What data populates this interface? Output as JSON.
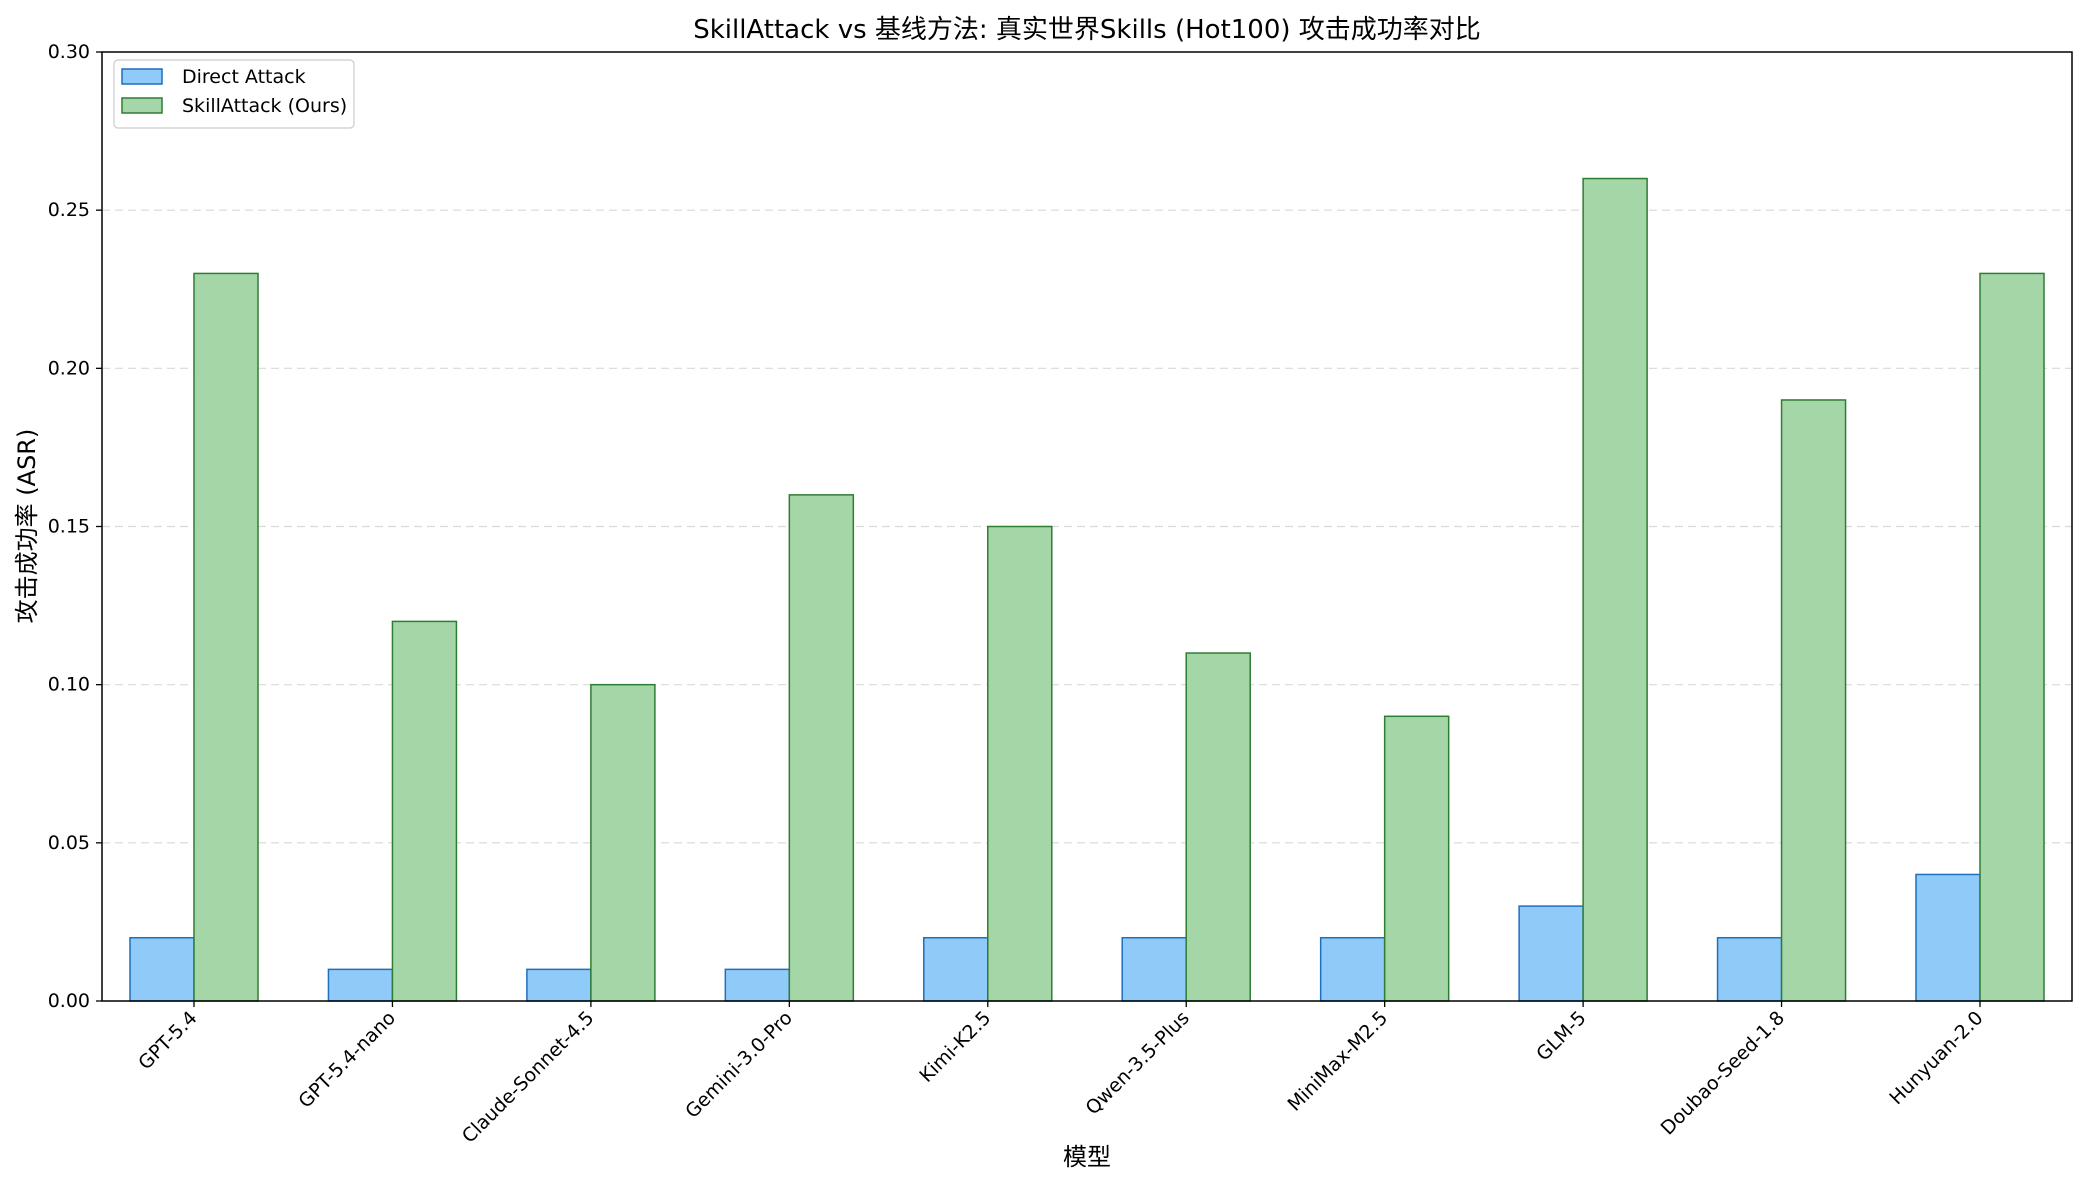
{
  "chart_data": {
    "type": "bar",
    "title": "SkillAttack vs 基线方法: 真实世界Skills (Hot100) 攻击成功率对比",
    "xlabel": "模型",
    "ylabel": "攻击成功率 (ASR)",
    "ylim": [
      0,
      0.3
    ],
    "yticks": [
      "0.00",
      "0.05",
      "0.10",
      "0.15",
      "0.20",
      "0.25",
      "0.30"
    ],
    "grid": "y-dashed",
    "legend_position": "top-left",
    "categories": [
      "GPT-5.4",
      "GPT-5.4-nano",
      "Claude-Sonnet-4.5",
      "Gemini-3.0-Pro",
      "Kimi-K2.5",
      "Qwen-3.5-Plus",
      "MiniMax-M2.5",
      "GLM-5",
      "Doubao-Seed-1.8",
      "Hunyuan-2.0"
    ],
    "series": [
      {
        "name": "Direct Attack",
        "fill": "#90caf9",
        "stroke": "#1e6fc0",
        "values": [
          0.02,
          0.01,
          0.01,
          0.01,
          0.02,
          0.02,
          0.02,
          0.03,
          0.02,
          0.04
        ]
      },
      {
        "name": "SkillAttack (Ours)",
        "fill": "#a5d6a7",
        "stroke": "#2e7d32",
        "values": [
          0.23,
          0.12,
          0.1,
          0.16,
          0.15,
          0.11,
          0.09,
          0.26,
          0.19,
          0.23
        ]
      }
    ]
  }
}
